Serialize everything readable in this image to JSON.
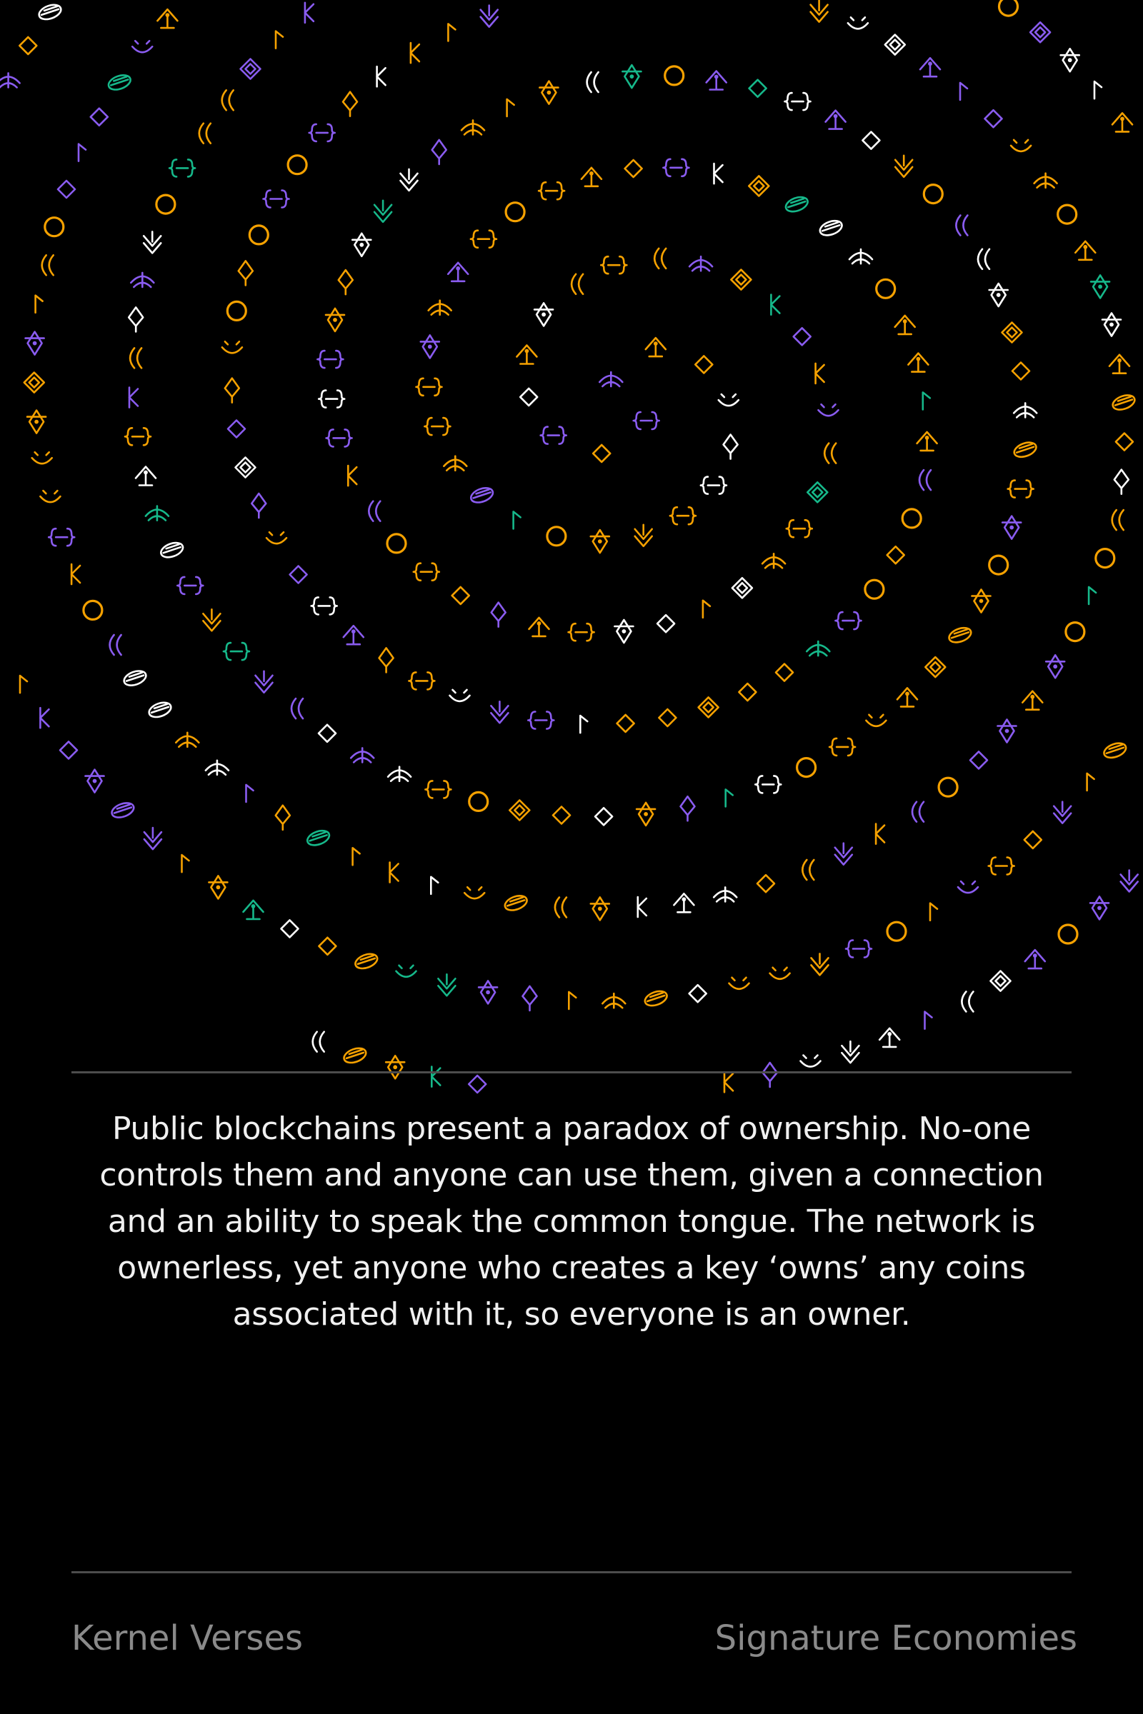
{
  "art": {
    "palette": [
      "#f5a100",
      "#8a5cf0",
      "#ffffff",
      "#16b88a"
    ],
    "glyphs": [
      "circle-glyph",
      "diamond-glyph",
      "nested-diamond-glyph",
      "dot-diamond-glyph",
      "arrow-glyph",
      "bow-glyph",
      "bracket-glyph",
      "wing-glyph",
      "flag-glyph",
      "moon-glyph",
      "spindle-glyph",
      "planet-glyph",
      "chevron-glyph",
      "pin-glyph"
    ]
  },
  "verse": {
    "text": "Public blockchains present a paradox of ownership. No-one controls them and anyone can use them, given a connection and an ability to speak the common tongue. The network is ownerless, yet anyone who creates a key ‘owns’ any coins associated with it, so everyone is an owner."
  },
  "footer": {
    "collection": "Kernel Verses",
    "title": "Signature Economies"
  }
}
